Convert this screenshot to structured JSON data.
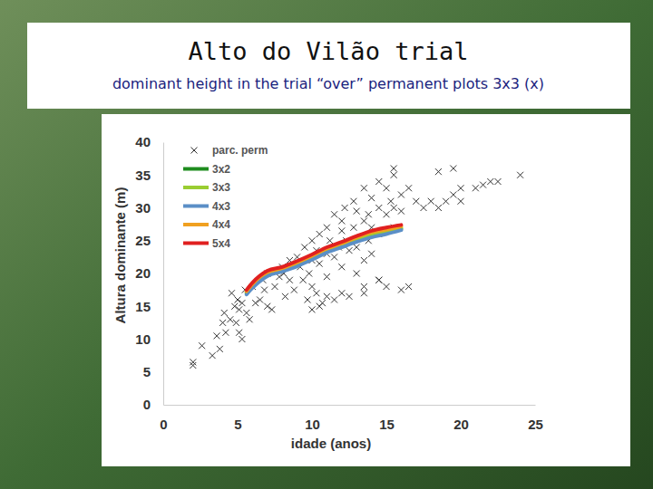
{
  "chart_data": {
    "type": "scatter",
    "title": "Alto do Vilão trial",
    "subtitle": "dominant height in the trial “over” permanent plots 3x3 (x)",
    "x_label": "idade (anos)",
    "y_label": "Altura dominante (m)",
    "xlim": [
      0,
      25
    ],
    "xticks": [
      0,
      5,
      10,
      15,
      20,
      25
    ],
    "ylim": [
      0,
      40
    ],
    "yticks": [
      0,
      5,
      10,
      15,
      20,
      25,
      30,
      35,
      40
    ],
    "legend": "upper left",
    "series": [
      {
        "name": "parc. perm",
        "type": "scatter",
        "marker": "x",
        "color": "#333333",
        "x": [
          2,
          2,
          2.6,
          3.3,
          3.6,
          3.8,
          4,
          4.2,
          4.1,
          4.5,
          4.6,
          4.8,
          4.9,
          5,
          5.1,
          5.1,
          5.3,
          5.3,
          5.5,
          5.6,
          5.8,
          6,
          6.2,
          6.5,
          6.7,
          6.8,
          7,
          7,
          7.3,
          7.5,
          7.8,
          8,
          8.1,
          8.2,
          8.5,
          8.5,
          8.8,
          9,
          9.2,
          9.4,
          9.5,
          9.7,
          9.8,
          10,
          10,
          10,
          10,
          10.3,
          10.3,
          10.5,
          10.5,
          10.7,
          11,
          11,
          11,
          11.2,
          11.5,
          11.5,
          11.5,
          11.8,
          12,
          12,
          12,
          12.2,
          12.3,
          12.5,
          12.5,
          12.8,
          12.8,
          13,
          13,
          13,
          13.5,
          13.5,
          13.5,
          13.5,
          13.8,
          13.8,
          14,
          14,
          14,
          14.5,
          14.5,
          14.5,
          14.5,
          15,
          15,
          15,
          15,
          15.3,
          15.5,
          15.5,
          15.5,
          15.5,
          16,
          16,
          16,
          16.5,
          16.5,
          17,
          17.5,
          18,
          18.5,
          19,
          19.5,
          20,
          20,
          21,
          21.5,
          22,
          22.5,
          24,
          18.5,
          19.5,
          10.5,
          11,
          12,
          13.5,
          14.5
        ],
        "values": [
          6.5,
          6,
          9,
          7.5,
          10.5,
          8.5,
          12.5,
          11,
          14,
          13,
          17,
          15,
          12.5,
          16,
          14.5,
          11,
          15.5,
          10,
          17.5,
          14,
          13,
          18,
          15.5,
          16,
          19,
          17.5,
          15,
          20,
          14.5,
          18,
          19.5,
          21,
          20,
          16.5,
          19,
          22,
          17.5,
          22.5,
          21,
          19,
          24,
          16,
          20,
          25,
          22,
          18,
          14.5,
          23.5,
          17,
          26,
          21.5,
          15.5,
          27,
          23,
          19.5,
          25,
          29,
          22.5,
          16,
          24,
          28,
          26.5,
          21,
          30,
          25,
          23.5,
          16.5,
          31,
          27,
          29.5,
          24,
          20,
          33,
          28,
          22,
          17,
          29,
          25,
          31.5,
          27,
          23,
          34,
          30,
          26,
          19,
          33,
          29,
          26.5,
          18,
          31,
          36,
          35,
          30,
          27,
          32,
          29.5,
          17.5,
          33,
          18,
          31,
          30,
          31,
          30,
          31,
          32,
          33,
          31,
          33,
          33.5,
          34,
          34,
          35,
          35.5,
          36,
          15,
          16.5,
          17,
          18,
          19
        ]
      },
      {
        "name": "3x2",
        "type": "line",
        "color": "#1e8c1e",
        "x": [
          5.6,
          6,
          7,
          8,
          9,
          10,
          11,
          12,
          13,
          14,
          15,
          16
        ],
        "values": [
          17,
          18,
          19.8,
          20.5,
          21.3,
          22.3,
          23.5,
          24.2,
          25,
          25.8,
          26.2,
          26.8
        ]
      },
      {
        "name": "3x3",
        "type": "line",
        "color": "#9acd32",
        "x": [
          5.6,
          6,
          7,
          8,
          9,
          10,
          11,
          12,
          13,
          14,
          15,
          16
        ],
        "values": [
          17.2,
          18.2,
          20,
          20.6,
          21.5,
          22.5,
          23.6,
          24.4,
          25.2,
          26,
          26.4,
          27
        ]
      },
      {
        "name": "4x3",
        "type": "line",
        "color": "#5b8fc7",
        "x": [
          5.6,
          6,
          7,
          8,
          9,
          10,
          11,
          12,
          13,
          14,
          15,
          16
        ],
        "values": [
          16.8,
          17.8,
          19.6,
          20.3,
          21.1,
          22.1,
          23.2,
          24,
          24.8,
          25.5,
          26,
          26.6
        ]
      },
      {
        "name": "4x4",
        "type": "line",
        "color": "#f0a020",
        "x": [
          5.6,
          6,
          7,
          8,
          9,
          10,
          11,
          12,
          13,
          14,
          15,
          16
        ],
        "values": [
          17.3,
          18.4,
          20.2,
          20.8,
          21.7,
          22.7,
          23.8,
          24.6,
          25.5,
          26.3,
          26.7,
          27.2
        ]
      },
      {
        "name": "5x4",
        "type": "line",
        "color": "#e02020",
        "x": [
          5.6,
          6,
          7,
          8,
          9,
          10,
          11,
          12,
          13,
          14,
          15,
          16
        ],
        "values": [
          17.5,
          18.6,
          20.4,
          21,
          21.9,
          22.9,
          24,
          24.8,
          25.7,
          26.5,
          27,
          27.4
        ]
      }
    ]
  }
}
